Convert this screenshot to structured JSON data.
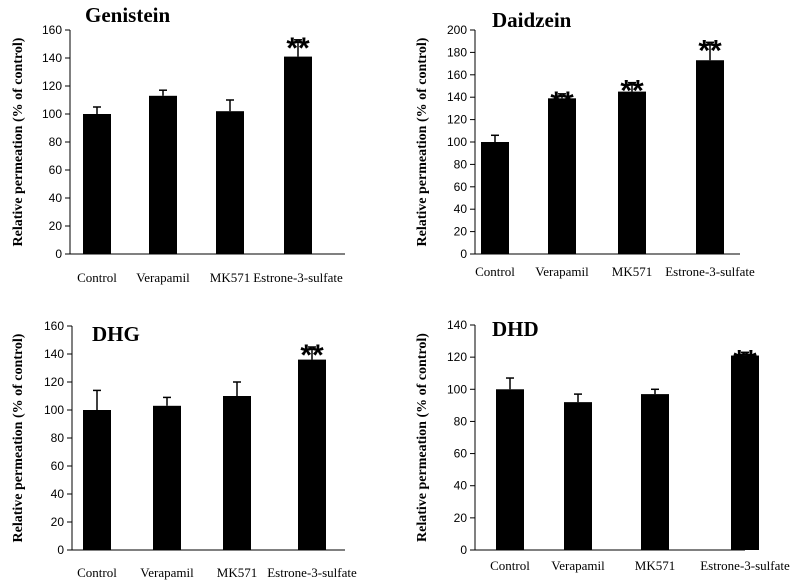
{
  "chart_data": [
    {
      "type": "bar",
      "title": "Genistein",
      "ylabel": "Relative permeation (% of control)",
      "xlabel": "",
      "categories": [
        "Control",
        "Verapamil",
        "MK571",
        "Estrone-3-sulfate"
      ],
      "values": [
        100,
        113,
        102,
        141
      ],
      "errors": [
        5,
        4,
        8,
        12
      ],
      "significance": [
        "",
        "",
        "",
        "**"
      ],
      "ylim": [
        0,
        160
      ],
      "yticks": [
        0,
        20,
        40,
        60,
        80,
        100,
        120,
        140,
        160
      ],
      "color": "#000000"
    },
    {
      "type": "bar",
      "title": "Daidzein",
      "ylabel": "Relative permeation (% of control)",
      "xlabel": "",
      "categories": [
        "Control",
        "Verapamil",
        "MK571",
        "Estrone-3-sulfate"
      ],
      "values": [
        100,
        139,
        145,
        173
      ],
      "errors": [
        6,
        4,
        8,
        16
      ],
      "significance": [
        "",
        "**",
        "**",
        "**"
      ],
      "ylim": [
        0,
        200
      ],
      "yticks": [
        0,
        20,
        40,
        60,
        80,
        100,
        120,
        140,
        160,
        180,
        200
      ],
      "color": "#000000"
    },
    {
      "type": "bar",
      "title": "DHG",
      "ylabel": "Relative permeation (% of control)",
      "xlabel": "",
      "categories": [
        "Control",
        "Verapamil",
        "MK571",
        "Estrone-3-sulfate"
      ],
      "values": [
        100,
        103,
        110,
        136
      ],
      "errors": [
        14,
        6,
        10,
        9
      ],
      "significance": [
        "",
        "",
        "",
        "**"
      ],
      "ylim": [
        0,
        160
      ],
      "yticks": [
        0,
        20,
        40,
        60,
        80,
        100,
        120,
        140,
        160
      ],
      "color": "#000000"
    },
    {
      "type": "bar",
      "title": "DHD",
      "ylabel": "Relative permeation (% of control)",
      "xlabel": "",
      "categories": [
        "Control",
        "Verapamil",
        "MK571",
        "Estrone-3-sulfate"
      ],
      "values": [
        100,
        92,
        97,
        121
      ],
      "errors": [
        7,
        5,
        3,
        2
      ],
      "significance": [
        "",
        "",
        "",
        "**"
      ],
      "ylim": [
        0,
        140
      ],
      "yticks": [
        0,
        20,
        40,
        60,
        80,
        100,
        120,
        140
      ],
      "color": "#000000"
    }
  ]
}
